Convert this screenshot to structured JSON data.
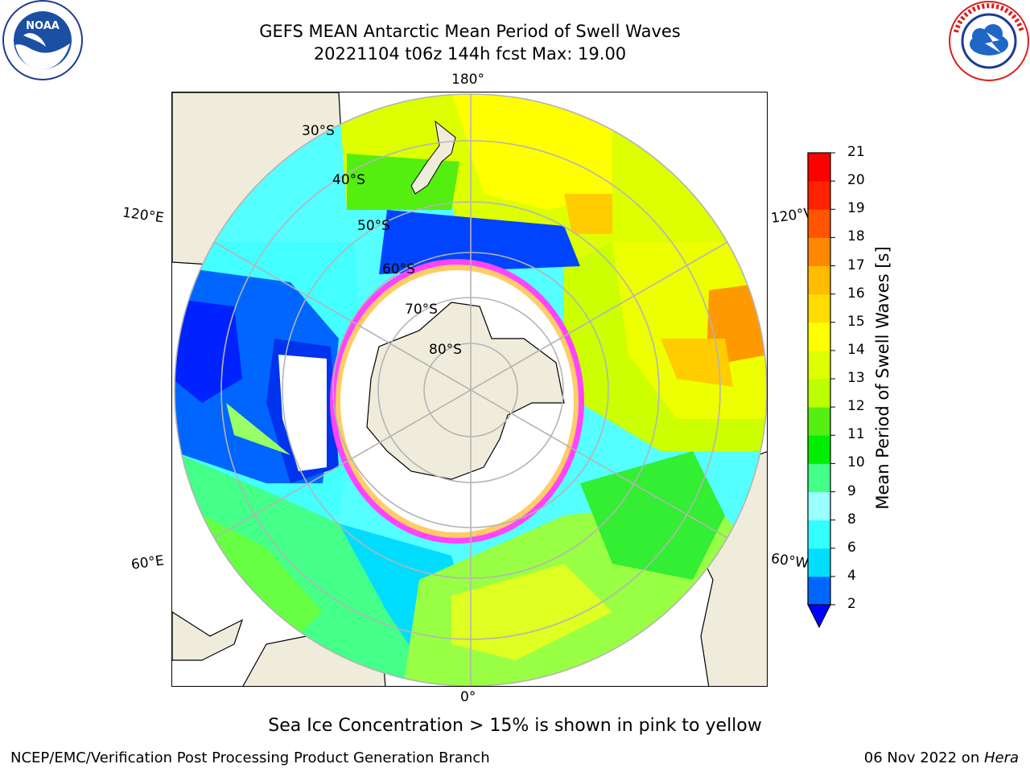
{
  "title": {
    "line1": "GEFS MEAN Antarctic Mean Period of Swell Waves",
    "line2": "20221104 t06z 144h fcst   Max: 19.00"
  },
  "logos": {
    "left": "NOAA",
    "right": "NATIONAL WEATHER SERVICE"
  },
  "map": {
    "projection": "south-polar-stereographic",
    "longitude_labels": {
      "top": "180°",
      "bottom": "0°",
      "left_upper": "120°E",
      "left_lower": "60°E",
      "right_upper": "120°W",
      "right_lower": "60°W"
    },
    "latitude_labels": [
      "30°S",
      "40°S",
      "50°S",
      "60°S",
      "70°S",
      "80°S"
    ],
    "colors": {
      "land": "#efecdc",
      "ice": "#ffffff",
      "graticule": "#b4b4b4"
    }
  },
  "colorbar": {
    "label": "Mean Period of Swell Waves [s]",
    "ticks": [
      "2",
      "4",
      "6",
      "8",
      "9",
      "10",
      "11",
      "12",
      "13",
      "14",
      "15",
      "16",
      "17",
      "18",
      "19",
      "20",
      "21"
    ],
    "colors": [
      "#0022ff",
      "#0066ff",
      "#00ddff",
      "#33ffff",
      "#99ffff",
      "#44ff88",
      "#00ee00",
      "#55ee11",
      "#bbff00",
      "#ddff00",
      "#ffff00",
      "#ffdd00",
      "#ffbb00",
      "#ff8800",
      "#ff5500",
      "#ff2200",
      "#ff0000"
    ],
    "extend_color": "#0000ff"
  },
  "note": "Sea Ice Concentration > 15% is shown in pink to yellow",
  "footer": {
    "left": "NCEP/EMC/Verification Post Processing Product Generation Branch",
    "right_date": "06 Nov 2022 on ",
    "right_machine": "Hera"
  }
}
